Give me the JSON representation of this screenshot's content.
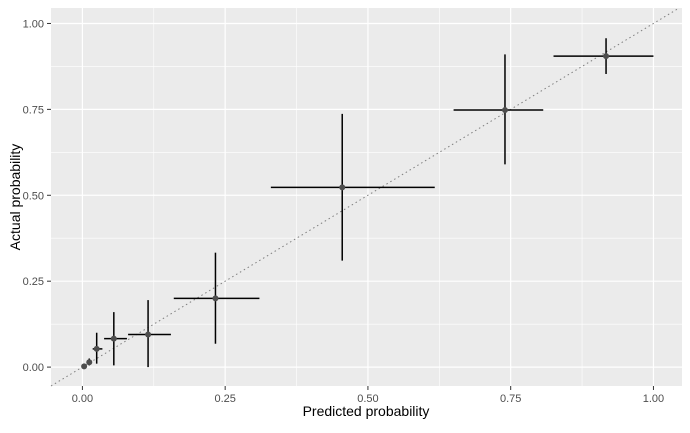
{
  "chart_data": {
    "type": "scatter",
    "title": "",
    "xlabel": "Predicted probability",
    "ylabel": "Actual probability",
    "xlim": [
      -0.055,
      1.05
    ],
    "ylim": [
      -0.055,
      1.045
    ],
    "x_ticks": [
      0.0,
      0.25,
      0.5,
      0.75,
      1.0
    ],
    "x_tick_labels": [
      "0.00",
      "0.25",
      "0.50",
      "0.75",
      "1.00"
    ],
    "y_ticks": [
      0.0,
      0.25,
      0.5,
      0.75,
      1.0
    ],
    "y_tick_labels": [
      "0.00",
      "0.25",
      "0.50",
      "0.75",
      "1.00"
    ],
    "grid": true,
    "background_color": "#ebebeb",
    "grid_color": "#ffffff",
    "reference_line": {
      "style": "dotted",
      "slope": 1,
      "intercept": 0,
      "color": "#7f7f7f"
    },
    "point_color": "#4d4d4d",
    "errorbar_color": "#000000",
    "points": [
      {
        "x": 0.003,
        "y": 0.002,
        "xmin": 0.003,
        "xmax": 0.003,
        "ymin": 0.002,
        "ymax": 0.002
      },
      {
        "x": 0.012,
        "y": 0.014,
        "xmin": 0.008,
        "xmax": 0.016,
        "ymin": 0.005,
        "ymax": 0.025
      },
      {
        "x": 0.025,
        "y": 0.053,
        "xmin": 0.018,
        "xmax": 0.035,
        "ymin": 0.01,
        "ymax": 0.1
      },
      {
        "x": 0.055,
        "y": 0.083,
        "xmin": 0.038,
        "xmax": 0.078,
        "ymin": 0.005,
        "ymax": 0.16
      },
      {
        "x": 0.115,
        "y": 0.095,
        "xmin": 0.08,
        "xmax": 0.155,
        "ymin": 0.0,
        "ymax": 0.195
      },
      {
        "x": 0.233,
        "y": 0.2,
        "xmin": 0.16,
        "xmax": 0.31,
        "ymin": 0.068,
        "ymax": 0.333
      },
      {
        "x": 0.455,
        "y": 0.523,
        "xmin": 0.33,
        "xmax": 0.617,
        "ymin": 0.31,
        "ymax": 0.737
      },
      {
        "x": 0.74,
        "y": 0.748,
        "xmin": 0.65,
        "xmax": 0.807,
        "ymin": 0.59,
        "ymax": 0.91
      },
      {
        "x": 0.917,
        "y": 0.905,
        "xmin": 0.825,
        "xmax": 1.0,
        "ymin": 0.853,
        "ymax": 0.957
      }
    ]
  }
}
